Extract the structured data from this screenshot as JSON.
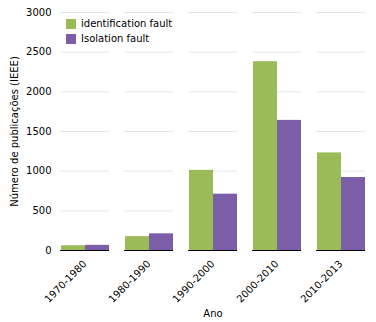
{
  "chart_data": {
    "type": "bar",
    "categories": [
      "1970-1980",
      "1980-1990",
      "1990-2000",
      "2000-2010",
      "2010-2013"
    ],
    "series": [
      {
        "name": "identification fault",
        "color": "#9BBB59",
        "values": [
          60,
          175,
          1010,
          2380,
          1230
        ]
      },
      {
        "name": "Isolation fault",
        "color": "#7B5EA7",
        "values": [
          65,
          210,
          710,
          1640,
          920
        ]
      }
    ],
    "xlabel": "Ano",
    "ylabel": "Número de publicações (IEEE)",
    "ylim": [
      0,
      3000
    ],
    "yticks": [
      0,
      500,
      1000,
      1500,
      2000,
      2500,
      3000
    ],
    "grid": true,
    "legend": "upper left"
  }
}
